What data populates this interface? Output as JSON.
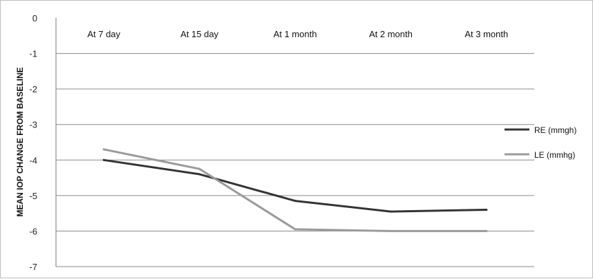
{
  "chart_data": {
    "type": "line",
    "ylabel": "MEAN IOP CHANGE FROM BASELINE",
    "xlabel": "",
    "categories": [
      "At 7 day",
      "At 15 day",
      "At 1 month",
      "At 2 month",
      "At 3 month"
    ],
    "ylim": [
      -7,
      0
    ],
    "yticks": [
      "0",
      "-1",
      "-2",
      "-3",
      "-4",
      "-5",
      "-6",
      "-7"
    ],
    "grid": true,
    "x_axis_position": "top",
    "legend_position": "right",
    "series": [
      {
        "name": "RE (mmgh)",
        "values": [
          -4.0,
          -4.4,
          -5.15,
          -5.45,
          -5.4
        ],
        "color": "#333333"
      },
      {
        "name": "LE (mmhg)",
        "values": [
          -3.7,
          -4.25,
          -5.95,
          -6.0,
          -6.0
        ],
        "color": "#9a9a9a"
      }
    ]
  }
}
